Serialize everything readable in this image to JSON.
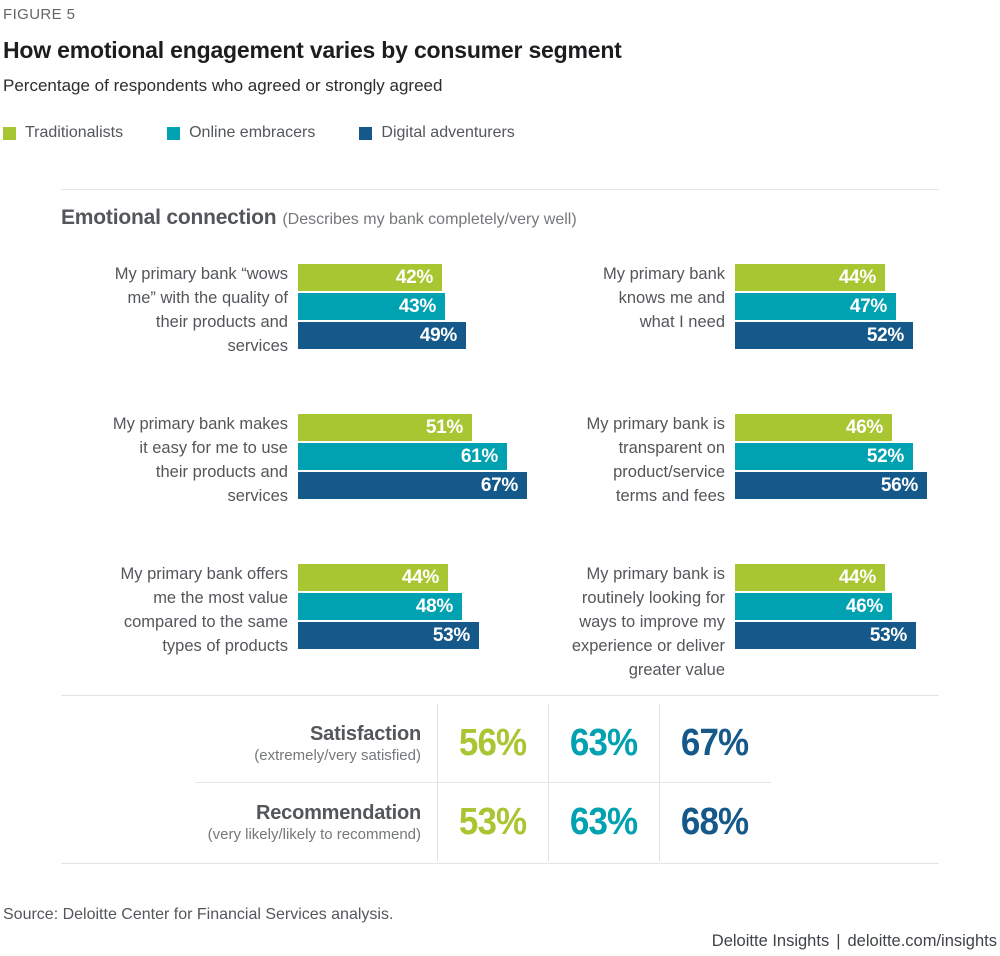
{
  "figure_label": "FIGURE 5",
  "title": "How emotional engagement varies by consumer segment",
  "subtitle": "Percentage of respondents who agreed or strongly agreed",
  "legend": [
    {
      "label": "Traditionalists",
      "color": "#a8c632"
    },
    {
      "label": "Online embracers",
      "color": "#00a1b0"
    },
    {
      "label": "Digital adventurers",
      "color": "#14598a"
    }
  ],
  "section": {
    "title": "Emotional connection",
    "qualifier": "(Describes my bank completely/very well)"
  },
  "chart_data": {
    "type": "bar",
    "orientation": "horizontal",
    "unit": "%",
    "xlim": [
      0,
      70
    ],
    "series": [
      "Traditionalists",
      "Online embracers",
      "Digital adventurers"
    ],
    "series_colors": [
      "#a8c632",
      "#00a1b0",
      "#14598a"
    ],
    "groups": [
      {
        "category": "My primary bank “wows me” with the quality of their products and services",
        "lines": [
          "My primary bank “wows",
          "me” with the quality of",
          "their products and",
          "services"
        ],
        "values": [
          42,
          43,
          49
        ]
      },
      {
        "category": "My primary bank knows me and what I need",
        "lines": [
          "My primary bank",
          "knows me and",
          "what I need"
        ],
        "values": [
          44,
          47,
          52
        ]
      },
      {
        "category": "My primary bank makes it easy for me to use their products and services",
        "lines": [
          "My primary bank makes",
          "it easy for me to use",
          "their products and",
          "services"
        ],
        "values": [
          51,
          61,
          67
        ]
      },
      {
        "category": "My primary bank is transparent on product/service terms and fees",
        "lines": [
          "My primary bank is",
          "transparent on",
          "product/service",
          "terms and fees"
        ],
        "values": [
          46,
          52,
          56
        ]
      },
      {
        "category": "My primary bank offers me the most value compared to the same types of products",
        "lines": [
          "My primary bank offers",
          "me the most value",
          "compared to the same",
          "types of products"
        ],
        "values": [
          44,
          48,
          53
        ]
      },
      {
        "category": "My primary bank is routinely looking for ways to improve my experience or deliver greater value",
        "lines": [
          "My primary bank is",
          "routinely looking for",
          "ways to improve my",
          "experience or deliver",
          "greater value"
        ],
        "values": [
          44,
          46,
          53
        ]
      }
    ],
    "summary": [
      {
        "label": "Satisfaction",
        "qualifier": "(extremely/very satisfied)",
        "values": [
          56,
          63,
          67
        ]
      },
      {
        "label": "Recommendation",
        "qualifier": "(very likely/likely to recommend)",
        "values": [
          53,
          63,
          68
        ]
      }
    ]
  },
  "source": "Source: Deloitte Center for Financial Services analysis.",
  "footer": {
    "brand": "Deloitte Insights",
    "separator": "|",
    "site": "deloitte.com/insights"
  }
}
